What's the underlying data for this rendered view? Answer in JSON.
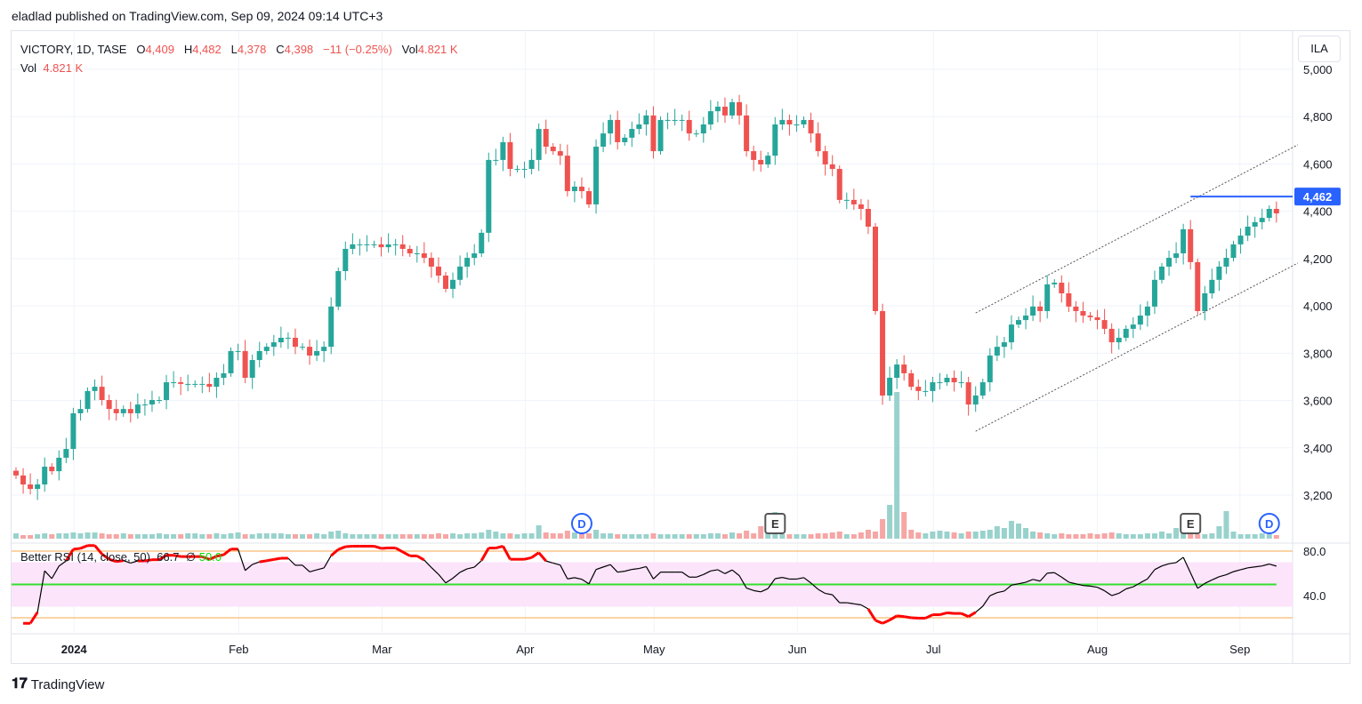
{
  "header": {
    "published": "eladlad published on TradingView.com, Sep 09, 2024 09:14 UTC+3"
  },
  "legend": {
    "symbol": "VICTORY, 1D, TASE",
    "o_label": "O",
    "o": "4,409",
    "h_label": "H",
    "h": "4,482",
    "l_label": "L",
    "l": "4,378",
    "c_label": "C",
    "c": "4,398",
    "change": "−11 (−0.25%)",
    "vol_label": "Vol",
    "vol": "4.821 K",
    "vol_row_label": "Vol",
    "vol_row_value": "4.821 K"
  },
  "currency_button": "ILA",
  "rsi": {
    "label": "Better RSI (14, close, 50)",
    "value": "66.7",
    "symbol": "∅",
    "mid": "50.0"
  },
  "logo": "TradingView",
  "colors": {
    "up": "#26a69a",
    "down": "#ef5350",
    "vol_up": "#99d2cc",
    "vol_down": "#f5a6a5",
    "line": "#2962ff",
    "rsi_band": "#fce4fb",
    "rsi_mid": "#33e02f",
    "rsi_bound": "#f7a94b"
  },
  "chart_data": {
    "type": "candlestick",
    "title": "VICTORY, 1D, TASE",
    "ylim": [
      3080,
      5040
    ],
    "y_ticks": [
      "3,200",
      "3,400",
      "3,600",
      "3,800",
      "4,000",
      "4,200",
      "4,400",
      "4,600",
      "4,800",
      "5,000"
    ],
    "y_tick_values": [
      3200,
      3400,
      3600,
      3800,
      4000,
      4200,
      4400,
      4600,
      4800,
      5000
    ],
    "x_ticks": [
      {
        "label": "2024",
        "idx": 8.1,
        "bold": true
      },
      {
        "label": "Feb",
        "idx": 31.1
      },
      {
        "label": "Mar",
        "idx": 51.1
      },
      {
        "label": "Apr",
        "idx": 71.1
      },
      {
        "label": "May",
        "idx": 89.1
      },
      {
        "label": "Jun",
        "idx": 109.1
      },
      {
        "label": "Jul",
        "idx": 128.1
      },
      {
        "label": "Aug",
        "idx": 151
      },
      {
        "label": "Sep",
        "idx": 170.9
      }
    ],
    "last_price_label": "4,462",
    "last_price": 4462,
    "last_price_from_idx": 164,
    "closes": [
      3283,
      3245,
      3226,
      3245,
      3320,
      3301,
      3358,
      3395,
      3546,
      3564,
      3640,
      3658,
      3602,
      3564,
      3546,
      3564,
      3546,
      3583,
      3583,
      3602,
      3602,
      3677,
      3677,
      3670,
      3670,
      3670,
      3670,
      3658,
      3696,
      3715,
      3809,
      3809,
      3696,
      3771,
      3809,
      3827,
      3846,
      3865,
      3865,
      3827,
      3827,
      3790,
      3809,
      3827,
      3997,
      4147,
      4241,
      4260,
      4260,
      4260,
      4260,
      4248,
      4260,
      4260,
      4241,
      4222,
      4222,
      4203,
      4166,
      4128,
      4072,
      4110,
      4166,
      4203,
      4222,
      4309,
      4617,
      4617,
      4692,
      4579,
      4579,
      4579,
      4617,
      4748,
      4673,
      4654,
      4635,
      4485,
      4504,
      4485,
      4429,
      4673,
      4729,
      4786,
      4692,
      4711,
      4748,
      4767,
      4805,
      4654,
      4786,
      4786,
      4786,
      4786,
      4729,
      4729,
      4767,
      4823,
      4842,
      4805,
      4861,
      4805,
      4654,
      4617,
      4598,
      4635,
      4767,
      4786,
      4767,
      4767,
      4786,
      4729,
      4654,
      4598,
      4579,
      4448,
      4448,
      4429,
      4410,
      4335,
      3978,
      3621,
      3696,
      3752,
      3715,
      3658,
      3640,
      3640,
      3677,
      3677,
      3696,
      3677,
      3677,
      3583,
      3621,
      3677,
      3790,
      3827,
      3846,
      3921,
      3940,
      3959,
      3997,
      3978,
      4091,
      4098,
      4053,
      3997,
      3978,
      3959,
      3952,
      3940,
      3903,
      3846,
      3865,
      3903,
      3921,
      3959,
      3997,
      4110,
      4166,
      4203,
      4222,
      4324,
      4185,
      3978,
      4053,
      4110,
      4166,
      4203,
      4260,
      4297,
      4335,
      4354,
      4372,
      4410,
      4391
    ],
    "volumes": [
      6,
      4,
      4,
      5,
      6,
      5,
      6,
      6,
      7,
      6,
      7,
      7,
      6,
      5,
      5,
      6,
      5,
      5,
      5,
      5,
      6,
      5,
      5,
      5,
      6,
      6,
      5,
      5,
      6,
      5,
      6,
      7,
      5,
      5,
      6,
      6,
      6,
      6,
      5,
      5,
      5,
      5,
      6,
      5,
      8,
      9,
      6,
      5,
      5,
      5,
      5,
      5,
      5,
      5,
      5,
      5,
      5,
      5,
      5,
      6,
      5,
      6,
      5,
      6,
      6,
      7,
      10,
      8,
      6,
      6,
      5,
      6,
      6,
      15,
      7,
      6,
      6,
      9,
      7,
      6,
      6,
      10,
      6,
      6,
      5,
      5,
      5,
      5,
      5,
      6,
      5,
      5,
      5,
      5,
      5,
      5,
      5,
      6,
      6,
      5,
      7,
      6,
      9,
      6,
      14,
      8,
      30,
      5,
      5,
      5,
      5,
      5,
      6,
      6,
      7,
      8,
      5,
      5,
      7,
      10,
      8,
      22,
      38,
      165,
      30,
      10,
      7,
      6,
      8,
      9,
      8,
      7,
      6,
      8,
      8,
      9,
      10,
      14,
      12,
      20,
      17,
      12,
      8,
      7,
      6,
      5,
      6,
      5,
      5,
      5,
      6,
      5,
      6,
      7,
      6,
      5,
      5,
      5,
      6,
      6,
      8,
      6,
      12,
      6,
      6,
      5,
      5,
      6,
      14,
      31,
      8,
      5,
      5,
      5,
      6,
      5,
      4
    ],
    "channel": {
      "upper": [
        [
          134,
          3970
        ],
        [
          179,
          4681
        ]
      ],
      "lower": [
        [
          134,
          3470
        ],
        [
          179,
          4181
        ]
      ]
    },
    "events": [
      {
        "label": "D",
        "idx": 79,
        "kind": "dividend"
      },
      {
        "label": "E",
        "idx": 106,
        "kind": "earnings"
      },
      {
        "label": "E",
        "idx": 164,
        "kind": "earnings"
      },
      {
        "label": "D",
        "idx": 175,
        "kind": "dividend"
      }
    ],
    "rsi_ticks": [
      "80.0",
      "40.0"
    ],
    "rsi_tick_values": [
      80,
      40
    ],
    "rsi_bounds": [
      20,
      80
    ],
    "rsi_band": [
      30,
      70
    ],
    "rsi_mid": 50
  }
}
